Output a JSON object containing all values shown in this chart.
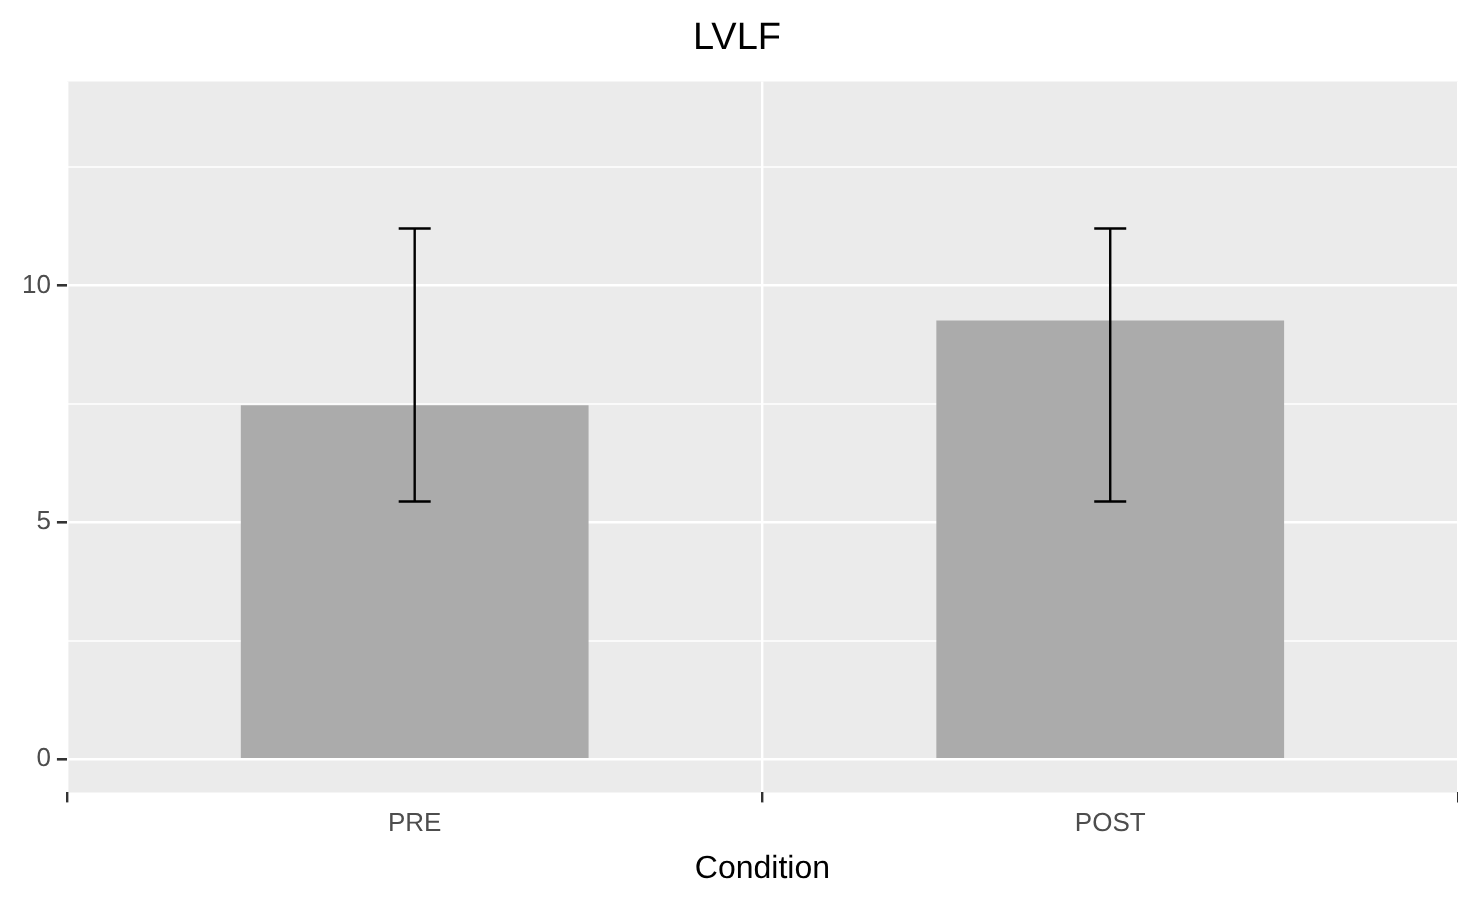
{
  "chart_data": {
    "type": "bar",
    "title": "LVLF",
    "xlabel": "Condition",
    "categories": [
      "PRE",
      "POST"
    ],
    "values": [
      7.47,
      9.26
    ],
    "color": "#ababab",
    "errors": [
      [
        5.44,
        11.2
      ],
      [
        5.44,
        11.2
      ]
    ],
    "ylim": [
      -0.7,
      14.3
    ],
    "yticks": [
      0,
      {
        "value": 2.5,
        "label": null
      },
      5,
      {
        "value": 7.5,
        "label": null
      },
      10,
      {
        "value": 12.5,
        "label": null
      }
    ],
    "grid": true,
    "legend": false
  }
}
